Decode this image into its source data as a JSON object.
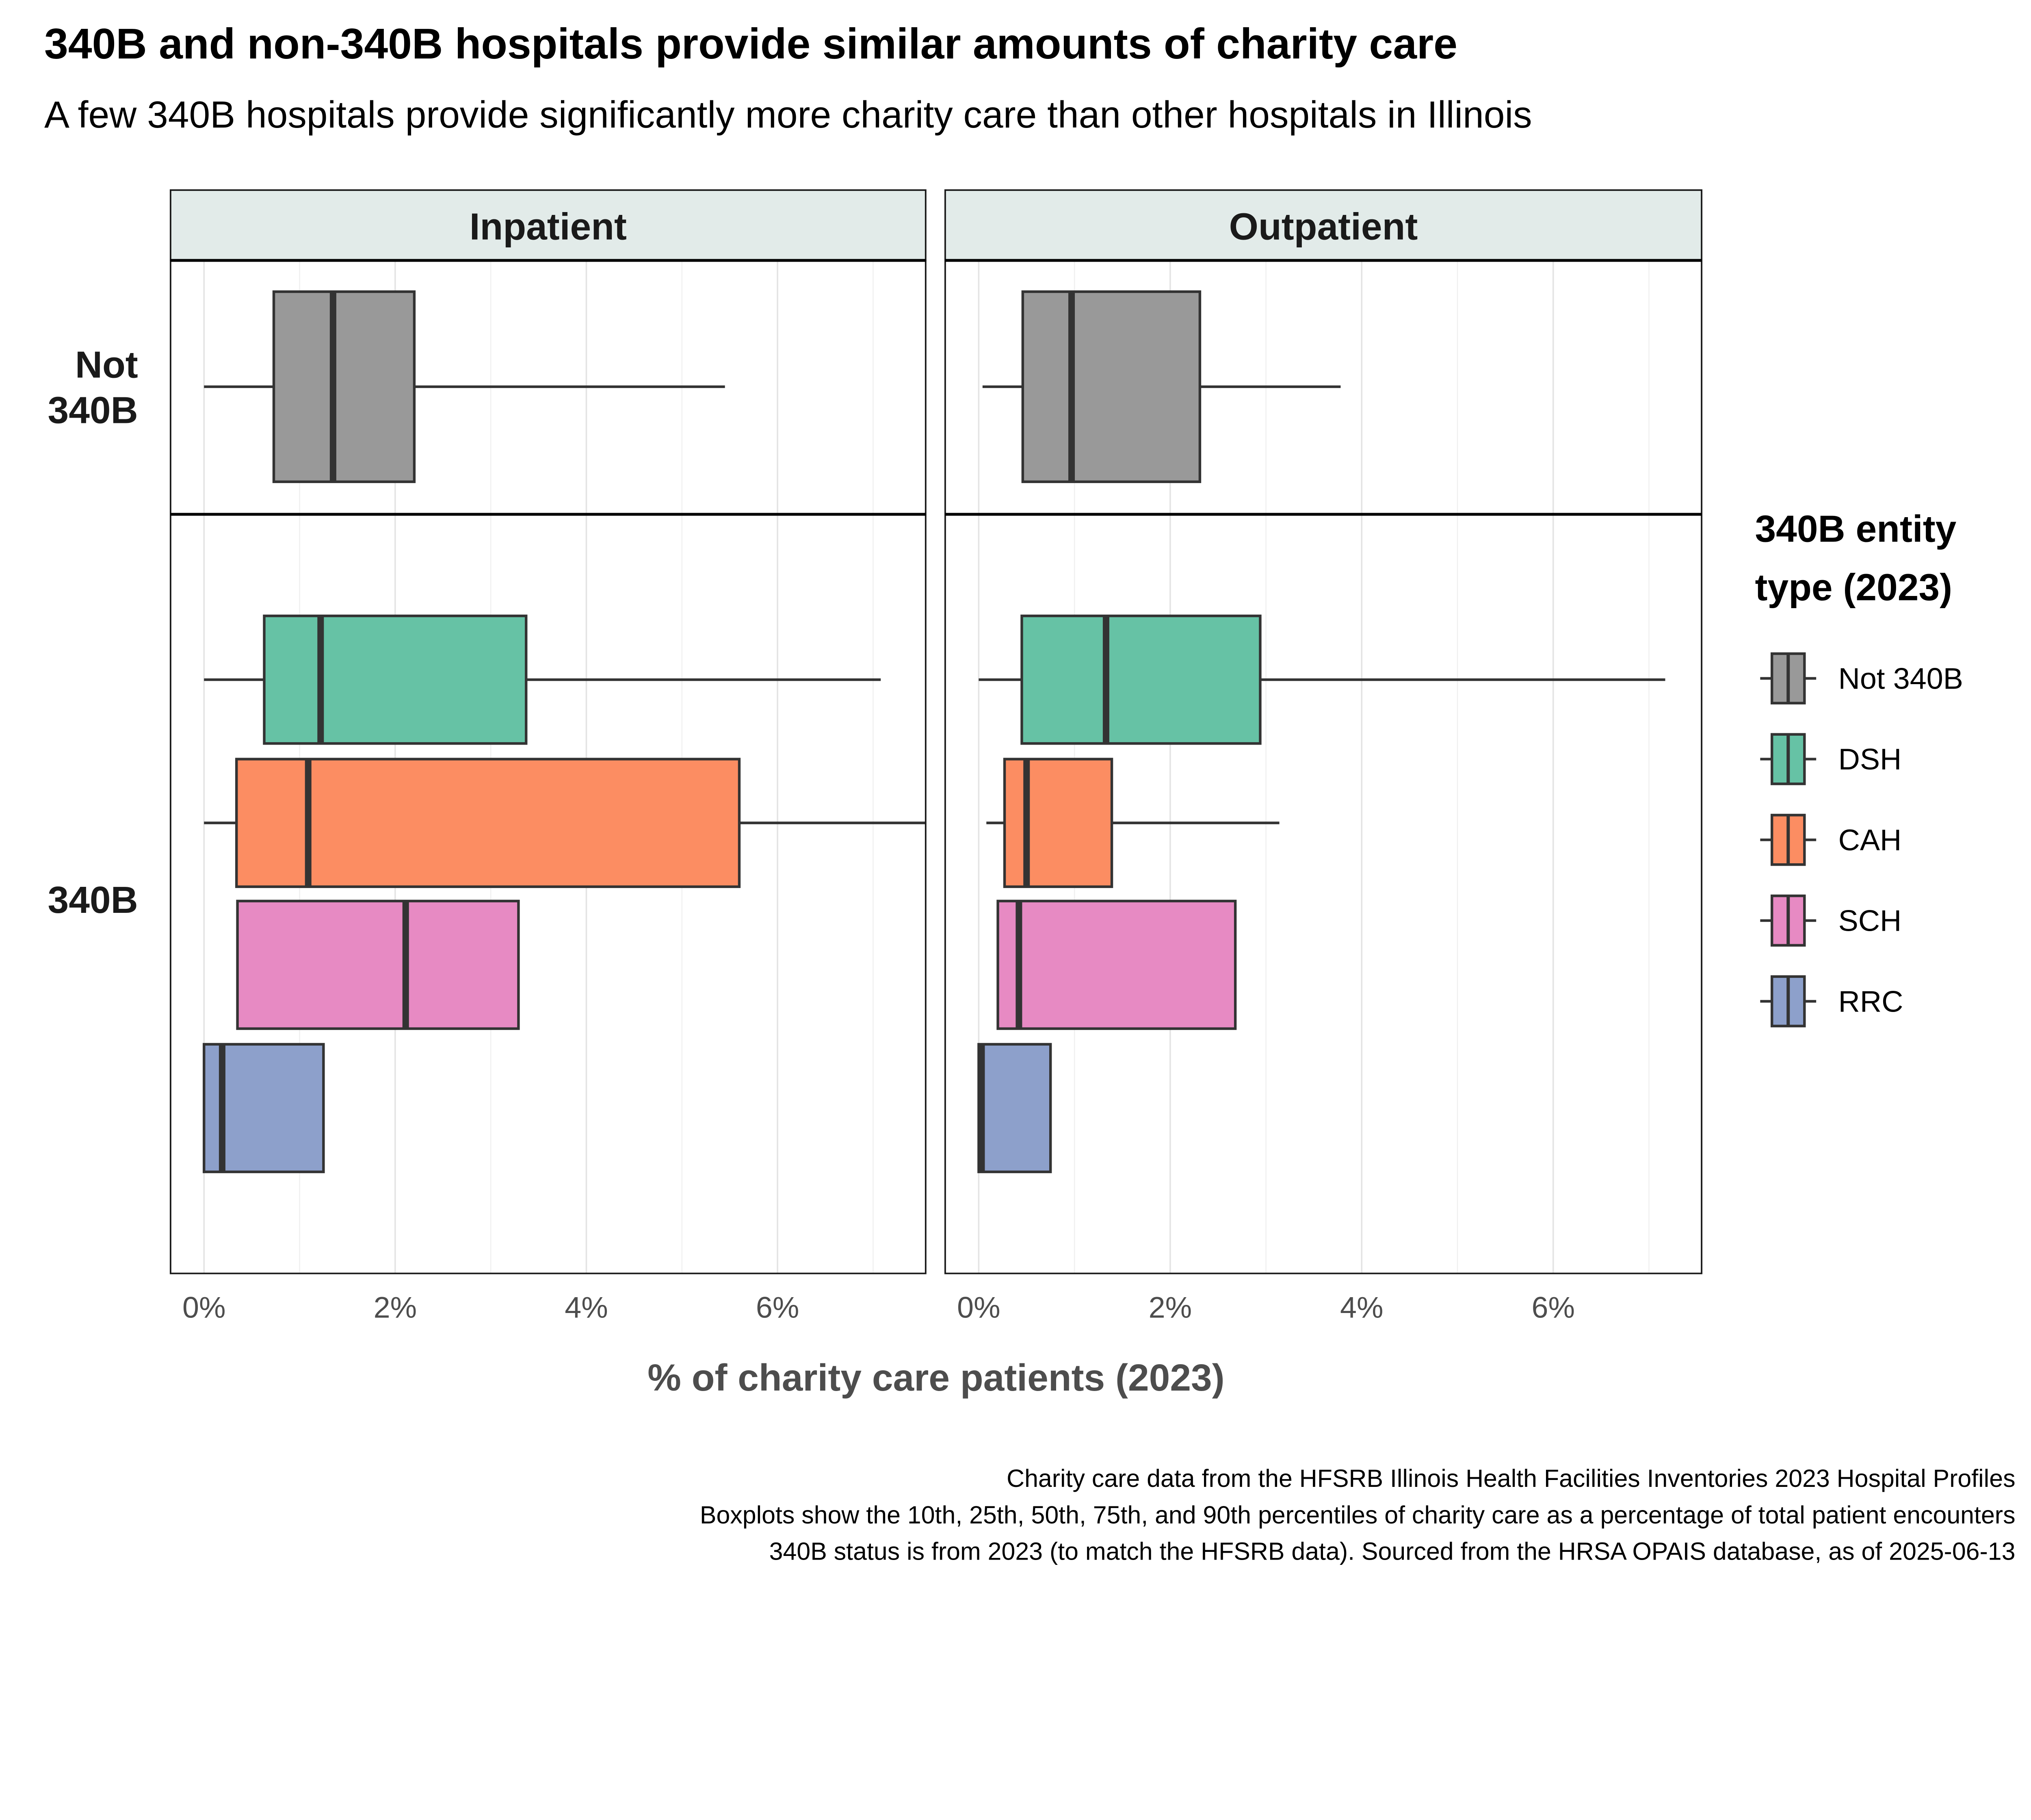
{
  "title": "340B and non-340B hospitals provide similar amounts of charity care",
  "subtitle": "A few 340B hospitals provide significantly more charity care than other hospitals in Illinois",
  "footnotes": [
    "Charity care data from the HFSRB Illinois Health Facilities Inventories 2023 Hospital Profiles",
    "Boxplots show the 10th, 25th, 50th, 75th, and 90th percentiles of charity care as a percentage of total patient encounters",
    "340B status is from 2023 (to match the HFSRB data). Sourced from the HRSA OPAIS database, as of 2025-06-13"
  ],
  "chart_data": {
    "type": "boxplot",
    "title": "340B and non-340B hospitals provide similar amounts of charity care",
    "xlabel": "% of charity care patients (2023)",
    "xlim": [
      -0.35,
      7.55
    ],
    "xticks": [
      0,
      2,
      4,
      6
    ],
    "xtick_labels": [
      "0%",
      "2%",
      "4%",
      "6%"
    ],
    "grid": true,
    "facets_columns": [
      "Inpatient",
      "Outpatient"
    ],
    "facets_rows": [
      "Not\n340B",
      "340B"
    ],
    "legend": {
      "title_lines": [
        "340B entity",
        "type (2023)"
      ],
      "position": "right",
      "entries": [
        {
          "label": "Not 340B",
          "color": "#999999"
        },
        {
          "label": "DSH",
          "color": "#66c2a5"
        },
        {
          "label": "CAH",
          "color": "#fc8d62"
        },
        {
          "label": "SCH",
          "color": "#e78ac3"
        },
        {
          "label": "RRC",
          "color": "#8da0cb"
        }
      ]
    },
    "series": [
      {
        "panel": "Inpatient",
        "row": "Not 340B",
        "type": "Not 340B",
        "p10": 0.0,
        "p25": 0.73,
        "p50": 1.35,
        "p75": 2.2,
        "p90": 5.45
      },
      {
        "panel": "Inpatient",
        "row": "340B",
        "type": "DSH",
        "p10": 0.0,
        "p25": 0.63,
        "p50": 1.22,
        "p75": 3.37,
        "p90": 7.08
      },
      {
        "panel": "Inpatient",
        "row": "340B",
        "type": "CAH",
        "p10": 0.0,
        "p25": 0.34,
        "p50": 1.09,
        "p75": 5.6,
        "p90": 7.8
      },
      {
        "panel": "Inpatient",
        "row": "340B",
        "type": "SCH",
        "p10": 0.35,
        "p25": 0.35,
        "p50": 2.11,
        "p75": 3.29,
        "p90": 3.29
      },
      {
        "panel": "Inpatient",
        "row": "340B",
        "type": "RRC",
        "p10": 0.0,
        "p25": 0.0,
        "p50": 0.19,
        "p75": 1.25,
        "p90": 1.25
      },
      {
        "panel": "Outpatient",
        "row": "Not 340B",
        "type": "Not 340B",
        "p10": 0.04,
        "p25": 0.46,
        "p50": 0.97,
        "p75": 2.31,
        "p90": 3.78
      },
      {
        "panel": "Outpatient",
        "row": "340B",
        "type": "DSH",
        "p10": 0.0,
        "p25": 0.45,
        "p50": 1.33,
        "p75": 2.94,
        "p90": 7.17
      },
      {
        "panel": "Outpatient",
        "row": "340B",
        "type": "CAH",
        "p10": 0.08,
        "p25": 0.27,
        "p50": 0.5,
        "p75": 1.39,
        "p90": 3.14
      },
      {
        "panel": "Outpatient",
        "row": "340B",
        "type": "SCH",
        "p10": 0.2,
        "p25": 0.2,
        "p50": 0.42,
        "p75": 2.68,
        "p90": 2.68
      },
      {
        "panel": "Outpatient",
        "row": "340B",
        "type": "RRC",
        "p10": 0.0,
        "p25": 0.0,
        "p50": 0.03,
        "p75": 0.75,
        "p90": 0.75
      }
    ]
  }
}
